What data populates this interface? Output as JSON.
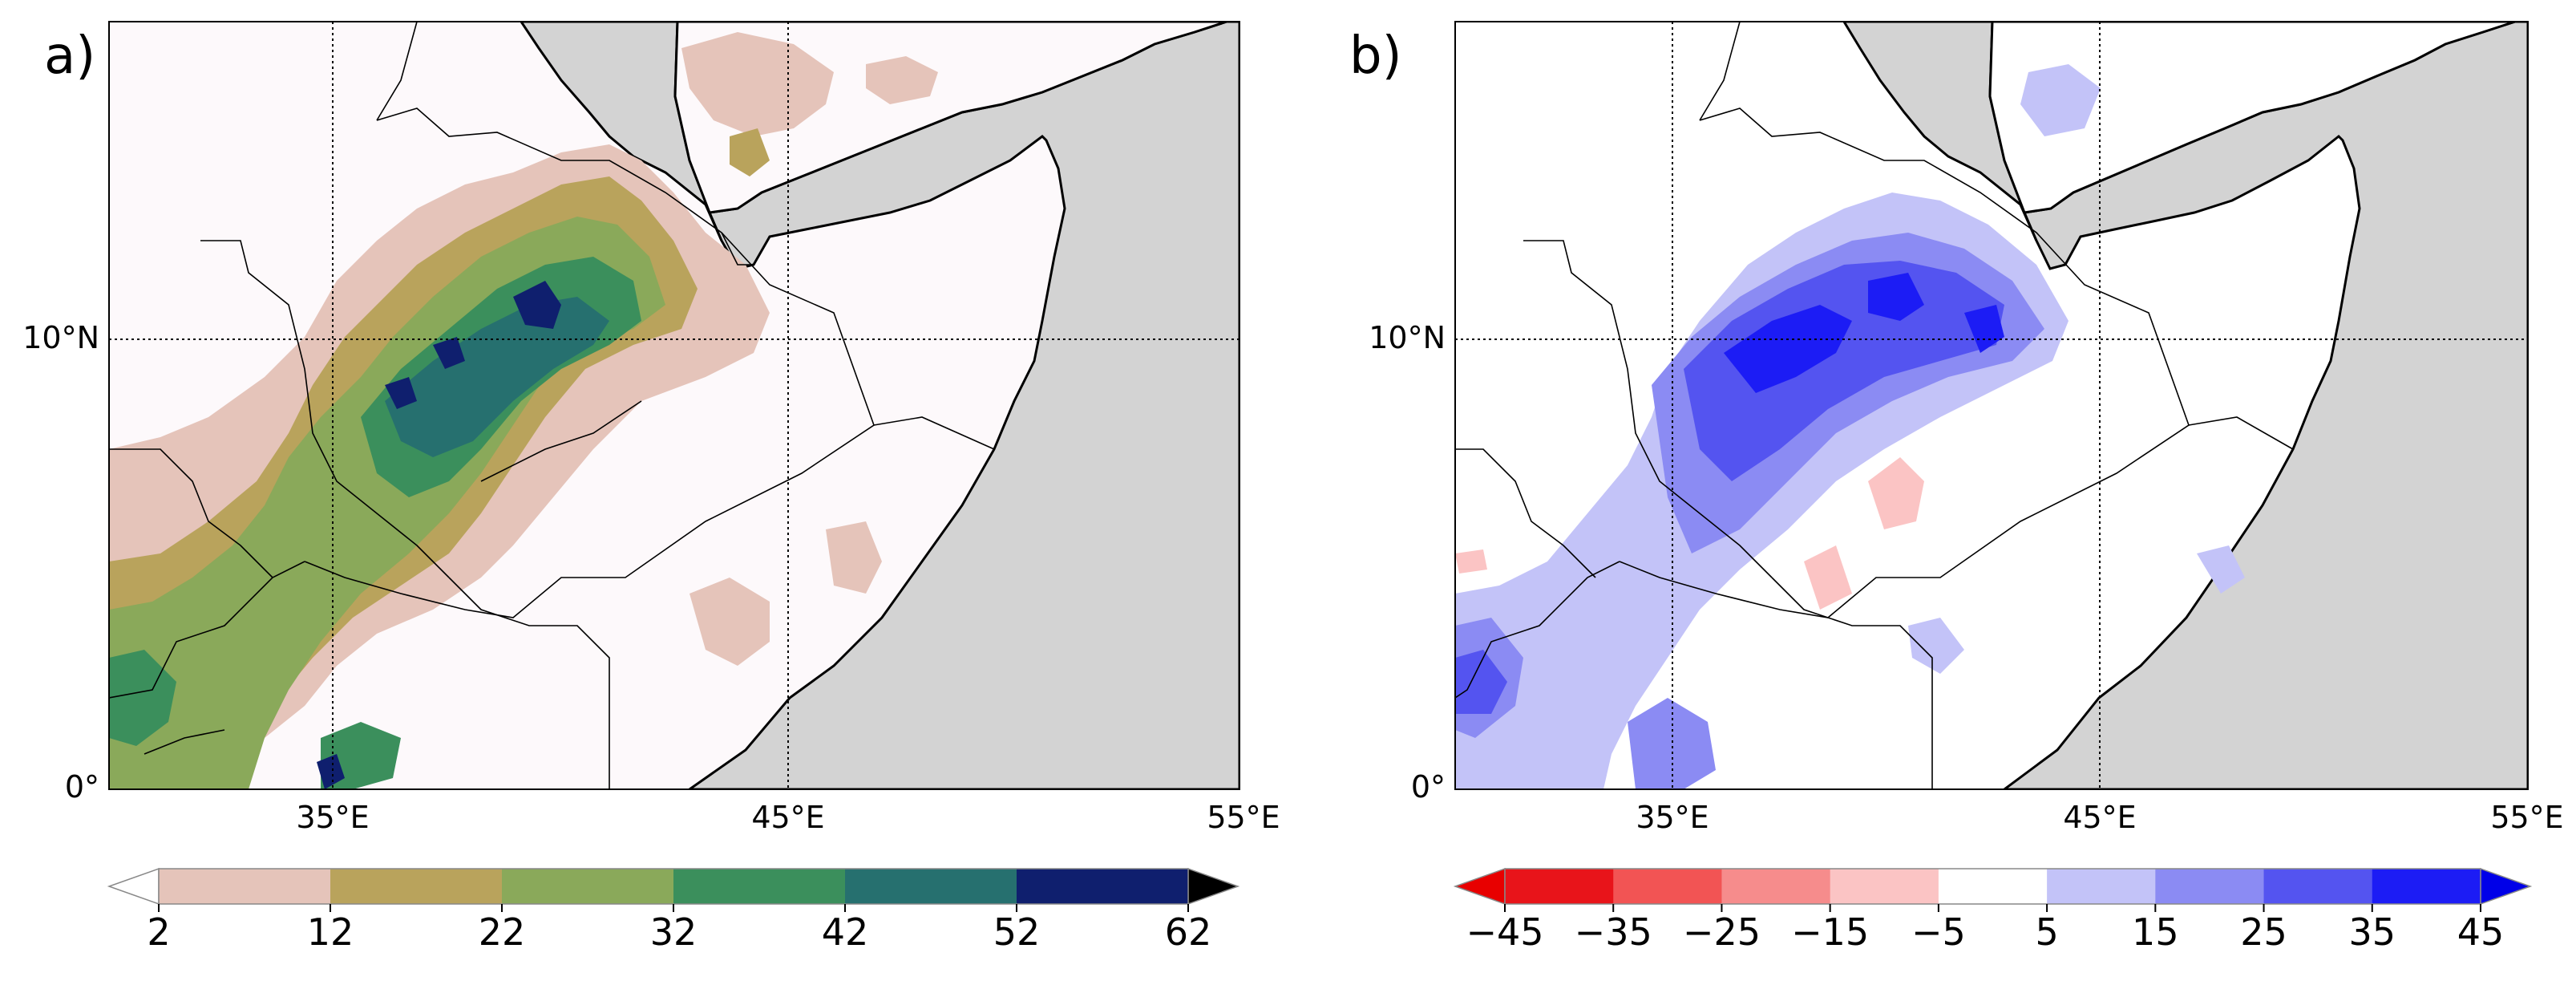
{
  "panels": [
    {
      "label": "a)",
      "x_ticks": [
        "35°E",
        "45°E",
        "55°E"
      ],
      "y_ticks": [
        "10°N",
        "0°"
      ],
      "colorbar": {
        "ticks": [
          "2",
          "12",
          "22",
          "32",
          "42",
          "52",
          "62"
        ],
        "colors": [
          "#e5c4ba",
          "#b9a35c",
          "#8aa95a",
          "#3b8f5c",
          "#26706f",
          "#0f1f6e"
        ],
        "under_color": "#ffffff",
        "over_color": "#000000",
        "extend": "both"
      }
    },
    {
      "label": "b)",
      "x_ticks": [
        "35°E",
        "45°E",
        "55°E"
      ],
      "y_ticks": [
        "10°N",
        "0°"
      ],
      "colorbar": {
        "ticks": [
          "−45",
          "−35",
          "−25",
          "−15",
          "−5",
          "5",
          "15",
          "25",
          "35",
          "45"
        ],
        "colors": [
          "#e8141a",
          "#f25454",
          "#f68c8c",
          "#fbc4c4",
          "#ffffff",
          "#c3c3f8",
          "#8b8bf3",
          "#5454f0",
          "#1c1cf5"
        ],
        "under_color": "#e80000",
        "over_color": "#0000e8",
        "extend": "both"
      }
    }
  ],
  "map": {
    "ocean_color": "#d3d3d3",
    "land_color": "#fdf9fb",
    "grid_style": "dotted"
  }
}
